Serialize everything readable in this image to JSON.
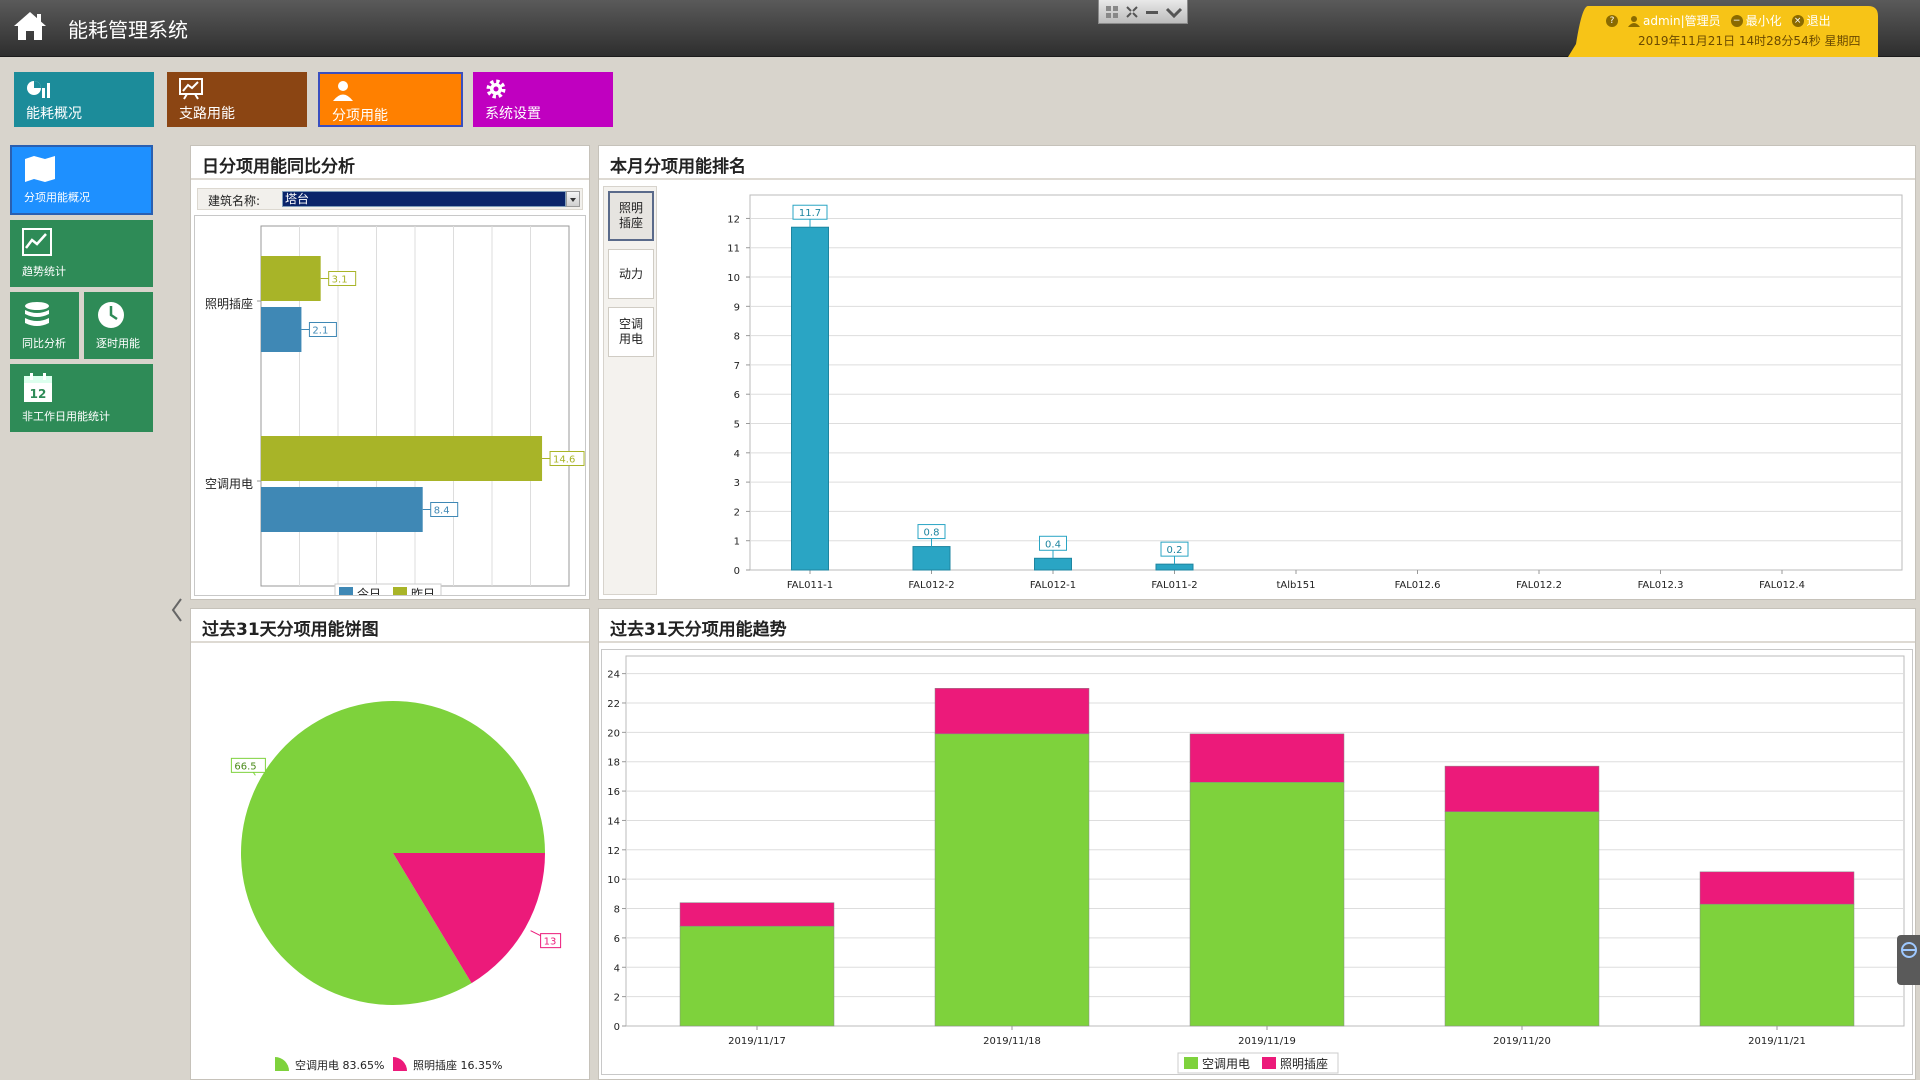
{
  "header": {
    "title": "能耗管理系统",
    "user": "admin|管理员",
    "minimize": "最小化",
    "logout": "退出",
    "datetime": "2019年11月21日 14时28分54秒 星期四"
  },
  "top_nav": [
    {
      "label": "能耗概况",
      "color": "#1c8c9a",
      "icon": "stats-icon"
    },
    {
      "label": "支路用能",
      "color": "#8b4513",
      "icon": "chart-board-icon"
    },
    {
      "label": "分项用能",
      "color": "#ff8000",
      "icon": "person-icon"
    },
    {
      "label": "系统设置",
      "color": "#c000c0",
      "icon": "gear-icon"
    }
  ],
  "side_nav": [
    {
      "label": "分项用能概况",
      "icon": "map-icon"
    },
    {
      "label": "趋势统计",
      "icon": "trend-icon"
    },
    {
      "label": "同比分析",
      "icon": "database-icon"
    },
    {
      "label": "逐时用能",
      "icon": "clock-icon"
    },
    {
      "label": "非工作日用能统计",
      "icon": "calendar-icon",
      "calendar_day": "12"
    }
  ],
  "panels": {
    "daily": {
      "title": "日分项用能同比分析",
      "building_label": "建筑名称:",
      "building_value": "塔台"
    },
    "ranking": {
      "title": "本月分项用能排名",
      "tabs": [
        "照明插座",
        "动力",
        "空调用电"
      ]
    },
    "pie": {
      "title": "过去31天分项用能饼图"
    },
    "trend": {
      "title": "过去31天分项用能趋势"
    }
  },
  "chart_data": [
    {
      "type": "bar",
      "orientation": "horizontal",
      "categories": [
        "照明插座",
        "空调用电"
      ],
      "series": [
        {
          "name": "昨日",
          "values": [
            3.1,
            14.6
          ],
          "color": "#a8b428"
        },
        {
          "name": "今日",
          "values": [
            2.1,
            8.4
          ],
          "color": "#3f88b5"
        }
      ],
      "legend_order": [
        "今日",
        "昨日"
      ],
      "xlim": [
        0,
        16
      ],
      "legend": "bottom"
    },
    {
      "type": "bar",
      "categories": [
        "FAL011-1",
        "FAL012-2",
        "FAL012-1",
        "FAL011-2",
        "tAlb151",
        "FAL012.6",
        "FAL012.2",
        "FAL012.3",
        "FAL012.4"
      ],
      "values": [
        11.7,
        0.8,
        0.4,
        0.2,
        0,
        0,
        0,
        0,
        0
      ],
      "labels": [
        "11.7",
        "0.8",
        "0.4",
        "0.2",
        "",
        "",
        "",
        "",
        ""
      ],
      "ylim": [
        0,
        12.8
      ],
      "yticks": [
        0,
        1,
        2,
        3,
        4,
        5,
        6,
        7,
        8,
        9,
        10,
        11,
        12
      ],
      "color": "#2aa5c4",
      "grid": true
    },
    {
      "type": "pie",
      "slices": [
        {
          "name": "空调用电",
          "value": 66.5,
          "label": "66.5",
          "percent": "83.65%",
          "color": "#7ed23c"
        },
        {
          "name": "照明插座",
          "value": 13,
          "label": "13",
          "percent": "16.35%",
          "color": "#ec1a7a"
        }
      ],
      "legend": "bottom"
    },
    {
      "type": "bar",
      "stacked": true,
      "categories": [
        "2019/11/17",
        "2019/11/18",
        "2019/11/19",
        "2019/11/20",
        "2019/11/21"
      ],
      "series": [
        {
          "name": "空调用电",
          "values": [
            6.8,
            19.9,
            16.6,
            14.6,
            8.3
          ],
          "color": "#7ed23c"
        },
        {
          "name": "照明插座",
          "values": [
            1.6,
            3.1,
            3.3,
            3.1,
            2.2
          ],
          "color": "#ec1a7a"
        }
      ],
      "ylim": [
        0,
        25.2
      ],
      "yticks": [
        0,
        2,
        4,
        6,
        8,
        10,
        12,
        14,
        16,
        18,
        20,
        22,
        24
      ],
      "grid": true,
      "legend": "bottom"
    }
  ]
}
